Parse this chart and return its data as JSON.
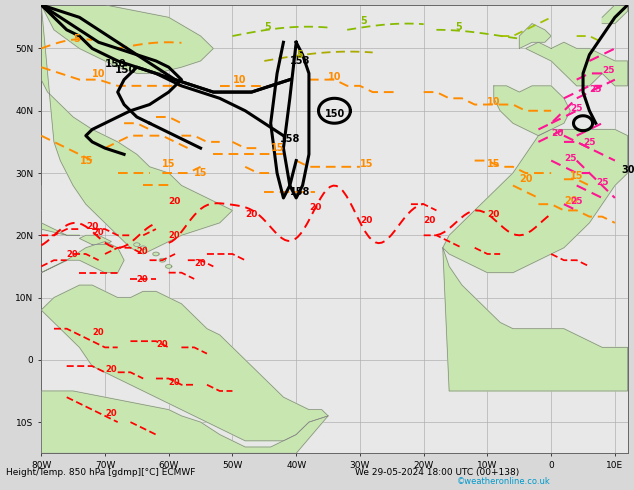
{
  "title_left": "Height/Temp. 850 hPa [gdmp][°C] ECMWF",
  "title_right": "We 29-05-2024 18:00 UTC (00+138)",
  "credit": "©weatheronline.co.uk",
  "background_color": "#d8d8d8",
  "land_color": "#c8e6b0",
  "sea_color": "#e8e8e8",
  "grid_color": "#b0b0b0",
  "title_color": "#000000",
  "credit_color": "#0099cc",
  "figsize": [
    6.34,
    4.9
  ],
  "dpi": 100,
  "lon_min": -80,
  "lon_max": 12,
  "lat_min": -15,
  "lat_max": 57,
  "xticks": [
    -80,
    -70,
    -60,
    -50,
    -40,
    -30,
    -20,
    -10,
    0,
    10
  ],
  "yticks": [
    -10,
    0,
    10,
    20,
    30,
    40,
    50
  ],
  "xlabel_spacing": 10
}
